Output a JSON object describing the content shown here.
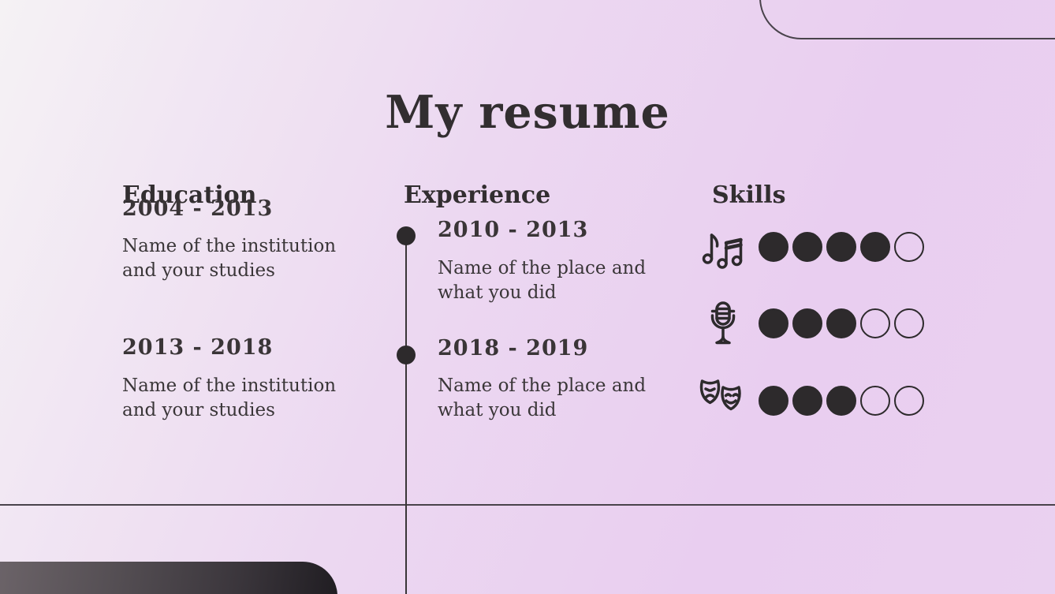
{
  "slide": {
    "title": "My resume",
    "colors": {
      "background_top_left": "#f5f2f4",
      "background_pink": "#e9cef0",
      "text": "#322e30",
      "hairline": "#49434b",
      "dot_filled": "#2d2a2c",
      "bottom_shape_start": "#6b6368",
      "bottom_shape_end": "#201d22"
    },
    "education": {
      "heading": "Education",
      "entries": [
        {
          "period": "2004 - 2013",
          "description": "Name of the institution\nand your studies"
        },
        {
          "period": "2013 - 2018",
          "description": "Name of the institution\nand your studies"
        }
      ]
    },
    "experience": {
      "heading": "Experience",
      "entries": [
        {
          "period": "2010 - 2013",
          "description": "Name of the place and\nwhat you did"
        },
        {
          "period": "2018 - 2019",
          "description": "Name of the place and\nwhat you did"
        }
      ]
    },
    "skills": {
      "heading": "Skills",
      "items": [
        {
          "icon": "music-notes-icon",
          "level": 4,
          "max": 5
        },
        {
          "icon": "microphone-icon",
          "level": 3,
          "max": 5
        },
        {
          "icon": "theater-masks-icon",
          "level": 3,
          "max": 5
        }
      ]
    }
  }
}
